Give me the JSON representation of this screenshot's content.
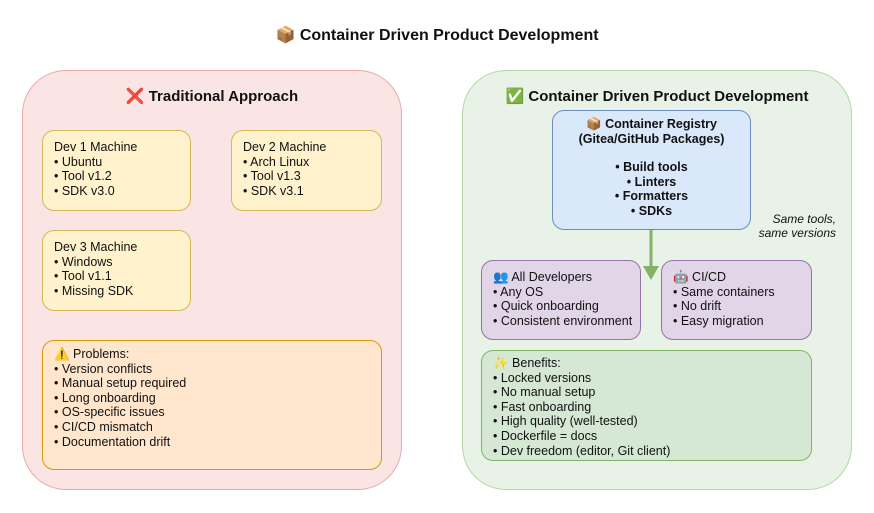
{
  "title": "📦 Container Driven Product Development",
  "traditional": {
    "heading": "❌ Traditional Approach",
    "dev1": {
      "title": "Dev 1 Machine",
      "items": [
        "• Ubuntu",
        "• Tool v1.2",
        "• SDK v3.0"
      ]
    },
    "dev2": {
      "title": "Dev 2 Machine",
      "items": [
        "• Arch Linux",
        "• Tool v1.3",
        "• SDK v3.1"
      ]
    },
    "dev3": {
      "title": "Dev 3 Machine",
      "items": [
        "• Windows",
        "• Tool v1.1",
        "• Missing SDK"
      ]
    },
    "problems": {
      "title": "⚠️ Problems:",
      "items": [
        "• Version conflicts",
        "• Manual setup required",
        "• Long onboarding",
        "• OS-specific issues",
        "• CI/CD mismatch",
        "• Documentation drift"
      ]
    }
  },
  "container": {
    "heading": "✅ Container Driven Product Development",
    "registry": {
      "title": "📦 Container Registry",
      "subtitle": "(Gitea/GitHub Packages)",
      "items": [
        "• Build tools",
        "• Linters",
        "• Formatters",
        "• SDKs"
      ]
    },
    "arrow_label": [
      "Same tools,",
      "same versions"
    ],
    "developers": {
      "title": "👥 All Developers",
      "items": [
        "• Any OS",
        "• Quick onboarding",
        "• Consistent environment"
      ]
    },
    "cicd": {
      "title": "🤖 CI/CD",
      "items": [
        "• Same containers",
        "• No drift",
        "• Easy migration"
      ]
    },
    "benefits": {
      "title": "✨ Benefits:",
      "items": [
        "• Locked versions",
        "• No manual setup",
        "• Fast onboarding",
        "• High quality (well-tested)",
        "• Dockerfile = docs",
        "• Dev freedom (editor, Git client)"
      ]
    }
  },
  "colors": {
    "arrow": "#82b366"
  }
}
